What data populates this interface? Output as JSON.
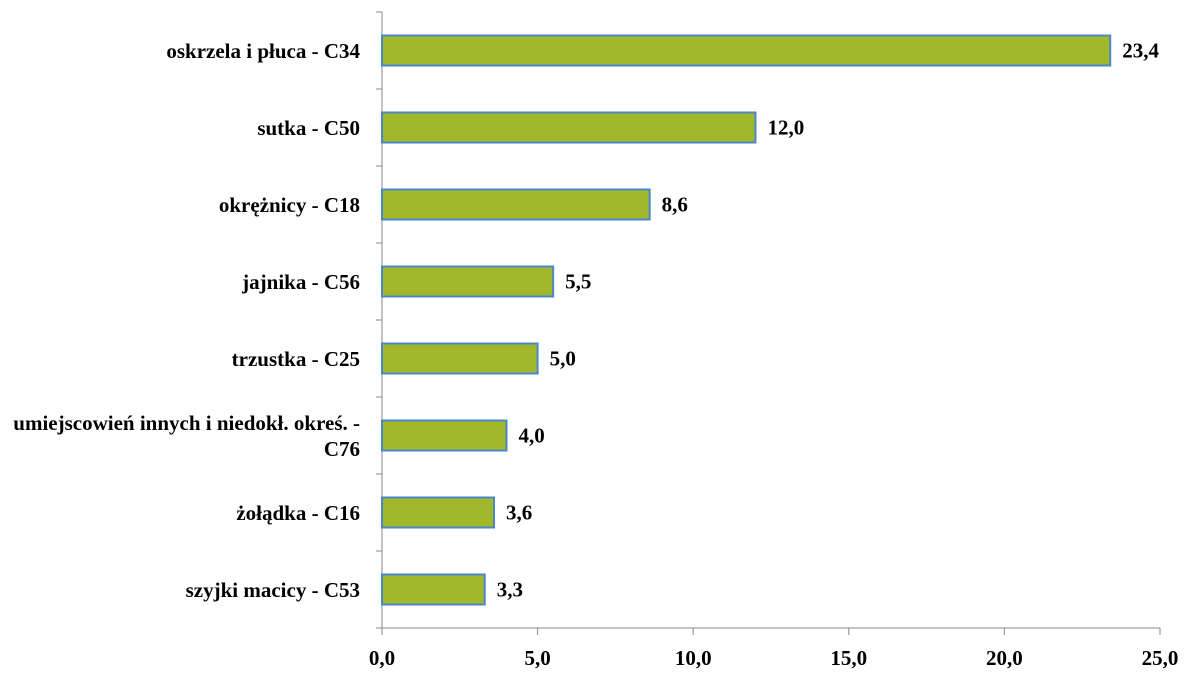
{
  "chart_data": {
    "type": "bar",
    "orientation": "horizontal",
    "categories": [
      "oskrzela i płuca - C34",
      "sutka - C50",
      "okrężnicy - C18",
      "jajnika - C56",
      "trzustka - C25",
      "umiejscowień innych i niedokł. okreś. - C76",
      "żołądka - C16",
      "szyjki macicy - C53"
    ],
    "values": [
      23.4,
      12.0,
      8.6,
      5.5,
      5.0,
      4.0,
      3.6,
      3.3
    ],
    "value_labels": [
      "23,4",
      "12,0",
      "8,6",
      "5,5",
      "5,0",
      "4,0",
      "3,6",
      "3,3"
    ],
    "color": "#a2b82b",
    "edge_color": "#4a86c8",
    "xlim": [
      0,
      25
    ],
    "xticks": [
      {
        "value": 0,
        "label": "0,0"
      },
      {
        "value": 5,
        "label": "5,0"
      },
      {
        "value": 10,
        "label": "10,0"
      },
      {
        "value": 15,
        "label": "15,0"
      },
      {
        "value": 20,
        "label": "20,0"
      },
      {
        "value": 25,
        "label": "25,0"
      }
    ],
    "grid": false
  }
}
